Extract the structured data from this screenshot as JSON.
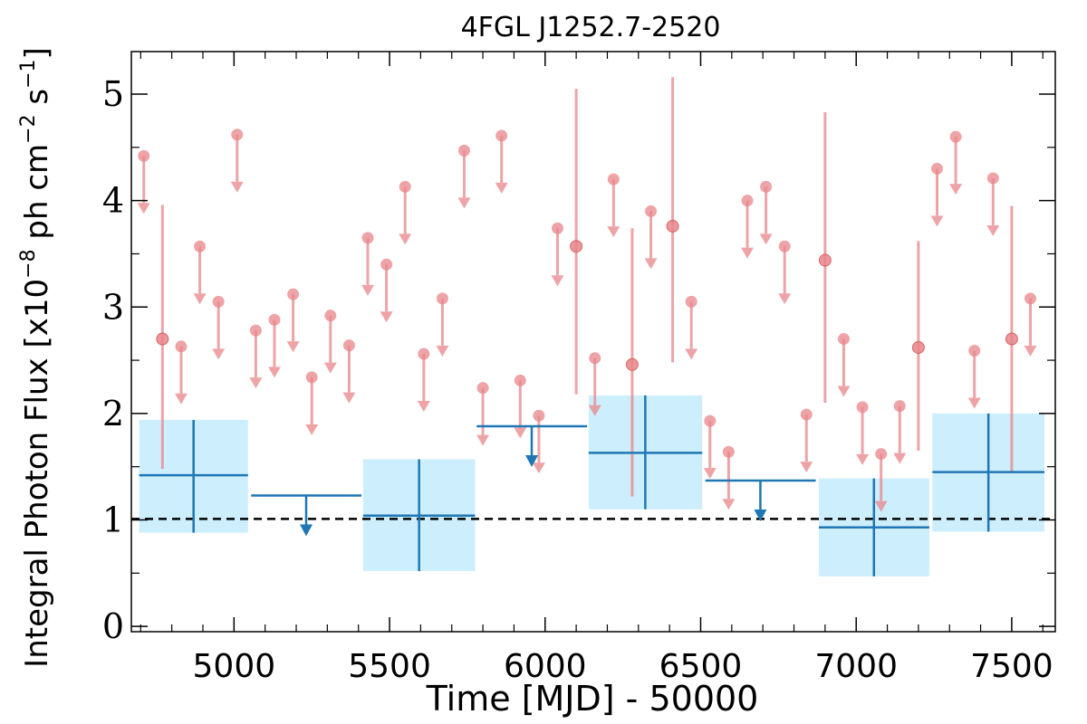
{
  "chart_data": {
    "type": "scatter",
    "title": "4FGL J1252.7-2520",
    "xlabel": "Time [MJD] - 50000",
    "ylabel": "Integral Photon Flux [x10",
    "ylabel_exp1": "−8",
    "ylabel_mid": " ph cm",
    "ylabel_exp2": "−2",
    "ylabel_mid2": " s",
    "ylabel_exp3": "−1",
    "ylabel_end": "]",
    "xlim": [
      4670,
      7640
    ],
    "ylim": [
      -0.05,
      5.4
    ],
    "xticks": [
      5000,
      5500,
      6000,
      6500,
      7000,
      7500
    ],
    "xtick_labels": [
      "5000",
      "5500",
      "6000",
      "6500",
      "7000",
      "7500"
    ],
    "yticks": [
      0,
      1,
      2,
      3,
      4,
      5
    ],
    "ytick_labels": [
      "0",
      "1",
      "2",
      "3",
      "4",
      "5"
    ],
    "reference_line": {
      "y": 1.01,
      "style": "dashed",
      "color": "#000000"
    },
    "colors": {
      "short_bin": "#e8868a",
      "long_bin": "#1f77b4",
      "long_bin_band": "#cdeefc"
    },
    "series": [
      {
        "kind": "short-bin upper limits",
        "x": [
          4710,
          4830,
          4890,
          4950,
          5010,
          5070,
          5130,
          5190,
          5250,
          5310,
          5370,
          5430,
          5490,
          5550,
          5610,
          5670,
          5740,
          5800,
          5860,
          5920,
          5980,
          6040,
          6160,
          6220,
          6340,
          6470,
          6530,
          6590,
          6650,
          6710,
          6770,
          6840,
          6960,
          7020,
          7080,
          7140,
          7260,
          7320,
          7380,
          7440,
          7560
        ],
        "y": [
          4.42,
          2.63,
          3.57,
          3.05,
          4.62,
          2.78,
          2.88,
          3.12,
          2.34,
          2.92,
          2.64,
          3.65,
          3.4,
          4.13,
          2.56,
          3.08,
          4.47,
          2.24,
          4.61,
          2.31,
          1.98,
          3.74,
          2.52,
          4.2,
          3.9,
          3.05,
          1.93,
          1.64,
          4.0,
          4.13,
          3.57,
          1.99,
          2.7,
          2.06,
          1.62,
          2.07,
          4.3,
          4.6,
          2.59,
          4.21,
          3.08
        ]
      },
      {
        "kind": "short-bin detections",
        "x": [
          4770,
          6100,
          6280,
          6410,
          6900,
          7200,
          7500
        ],
        "y": [
          2.7,
          3.57,
          2.46,
          3.76,
          3.44,
          2.62,
          2.7
        ],
        "y_low": [
          1.48,
          2.18,
          1.22,
          2.48,
          2.1,
          1.65,
          1.45
        ],
        "y_high": [
          3.96,
          5.05,
          3.74,
          5.16,
          4.83,
          3.62,
          3.95
        ]
      },
      {
        "kind": "long-bin detections",
        "x_low": [
          4695,
          5415,
          6140,
          6880,
          7245
        ],
        "x_high": [
          5045,
          5775,
          6505,
          7235,
          7605
        ],
        "x": [
          4870,
          5595,
          6322,
          7057,
          7425
        ],
        "y": [
          1.42,
          1.04,
          1.63,
          0.93,
          1.45
        ],
        "y_low": [
          0.88,
          0.52,
          1.1,
          0.47,
          0.89
        ],
        "y_high": [
          1.94,
          1.57,
          2.17,
          1.39,
          2.0
        ]
      },
      {
        "kind": "long-bin upper limits",
        "x_low": [
          5055,
          5780,
          6515
        ],
        "x_high": [
          5410,
          6135,
          6870
        ],
        "x": [
          5232,
          5957,
          6692
        ],
        "y": [
          1.23,
          1.88,
          1.37
        ]
      }
    ]
  }
}
